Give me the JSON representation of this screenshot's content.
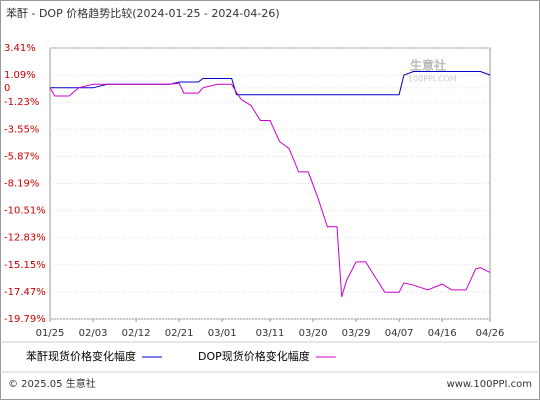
{
  "chart_data": {
    "type": "line",
    "title": "苯酐 - DOP 价格趋势比较(2024-01-25 - 2024-04-26)",
    "watermark": [
      "生意社",
      "100PPI.COM"
    ],
    "footer_left": "© 2025.05 生意社",
    "footer_right": "www.100PPI.com",
    "x": [
      "01/25",
      "01/26",
      "01/29",
      "01/31",
      "02/03",
      "02/06",
      "02/14",
      "02/19",
      "02/21",
      "02/22",
      "02/25",
      "02/26",
      "02/29",
      "03/03",
      "03/04",
      "03/05",
      "03/07",
      "03/09",
      "03/11",
      "03/13",
      "03/15",
      "03/17",
      "03/19",
      "03/21",
      "03/23",
      "03/25",
      "03/26",
      "03/27",
      "03/29",
      "03/31",
      "04/02",
      "04/04",
      "04/07",
      "04/08",
      "04/10",
      "04/13",
      "04/16",
      "04/18",
      "04/21",
      "04/23",
      "04/24",
      "04/26"
    ],
    "xticks": [
      "01/25",
      "02/03",
      "02/12",
      "02/21",
      "03/01",
      "03/11",
      "03/20",
      "03/29",
      "04/07",
      "04/16",
      "04/26"
    ],
    "series": [
      {
        "name": "苯酐现货价格变化幅度",
        "color": "#0000cc",
        "values": [
          0,
          0,
          0,
          0,
          0,
          0.3,
          0.3,
          0.3,
          0.5,
          0.5,
          0.5,
          0.8,
          0.8,
          0.8,
          -0.6,
          -0.6,
          -0.6,
          -0.6,
          -0.6,
          -0.6,
          -0.6,
          -0.6,
          -0.6,
          -0.6,
          -0.6,
          -0.6,
          -0.6,
          -0.6,
          -0.6,
          -0.6,
          -0.6,
          -0.6,
          -0.6,
          1.09,
          1.4,
          1.4,
          1.4,
          1.4,
          1.4,
          1.4,
          1.4,
          1.1
        ]
      },
      {
        "name": "DOP现货价格变化幅度",
        "color": "#cc00cc",
        "values": [
          0,
          -0.7,
          -0.7,
          0,
          0.3,
          0.3,
          0.3,
          0.3,
          0.4,
          -0.45,
          -0.45,
          0,
          0.3,
          0.3,
          -0.4,
          -1.0,
          -1.5,
          -2.8,
          -2.8,
          -4.6,
          -5.2,
          -7.2,
          -7.2,
          -9.4,
          -11.9,
          -11.9,
          -17.9,
          -16.5,
          -14.9,
          -14.9,
          -16.2,
          -17.5,
          -17.5,
          -16.7,
          -16.9,
          -17.3,
          -16.8,
          -17.3,
          -17.3,
          -15.5,
          -15.4,
          -15.8
        ]
      }
    ],
    "ylim": [
      -19.79,
      3.41
    ],
    "yticks": [
      {
        "value": 3.41,
        "label": "3.41%"
      },
      {
        "value": 1.09,
        "label": "1.09%"
      },
      0,
      {
        "value": -1.23,
        "label": "-1.23%"
      },
      {
        "value": -3.55,
        "label": "-3.55%"
      },
      {
        "value": -5.87,
        "label": "-5.87%"
      },
      {
        "value": -8.19,
        "label": "-8.19%"
      },
      {
        "value": -10.51,
        "label": "-10.51%"
      },
      {
        "value": -12.83,
        "label": "-12.83%"
      },
      {
        "value": -15.15,
        "label": "-15.15%"
      },
      {
        "value": -17.47,
        "label": "-17.47%"
      },
      {
        "value": -19.79,
        "label": "-19.79%"
      }
    ],
    "grid": true
  }
}
